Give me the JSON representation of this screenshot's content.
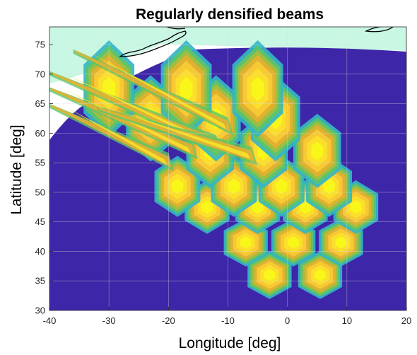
{
  "chart_data": {
    "type": "heatmap",
    "title": "Regularly densified beams",
    "xlabel": "Longitude [deg]",
    "ylabel": "Latitude [deg]",
    "xlim": [
      -40,
      20
    ],
    "ylim": [
      30,
      78
    ],
    "xticks": [
      "-40",
      "-30",
      "-20",
      "-10",
      "0",
      "10",
      "20"
    ],
    "yticks": [
      "30",
      "35",
      "40",
      "45",
      "50",
      "55",
      "60",
      "65",
      "70",
      "75"
    ],
    "grid": true,
    "colormap": "parula",
    "colors": {
      "background": "#3e26a8",
      "sea_outside_coverage": "#c8f7e3",
      "coastline": "#000000",
      "grid": "#dcdcdc"
    },
    "beam_rows": [
      {
        "lat": 36.0,
        "lons": [
          -3.0,
          5.5
        ]
      },
      {
        "lat": 41.5,
        "lons": [
          -7.0,
          1.0,
          9.0
        ]
      },
      {
        "lat": 47.5,
        "lons": [
          -13.5,
          -5.0,
          3.0,
          11.5
        ]
      },
      {
        "lat": 51.0,
        "lons": [
          -18.5,
          -9.0,
          -1.0,
          7.0
        ]
      },
      {
        "lat": 57.0,
        "lons": [
          -13.0,
          -4.0,
          5.0
        ]
      },
      {
        "lat": 62.5,
        "lons": [
          -23.0,
          -12.0,
          -2.0
        ]
      },
      {
        "lat": 67.5,
        "lons": [
          -30.0,
          -17.0,
          -5.0
        ]
      }
    ]
  }
}
